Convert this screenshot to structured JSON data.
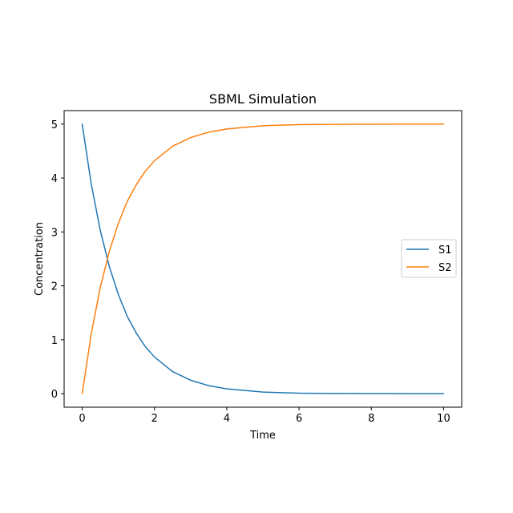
{
  "chart_data": {
    "type": "line",
    "title": "SBML Simulation",
    "xlabel": "Time",
    "ylabel": "Concentration",
    "xlim": [
      -0.5,
      10.5
    ],
    "ylim": [
      -0.25,
      5.25
    ],
    "xticks": [
      0,
      2,
      4,
      6,
      8,
      10
    ],
    "yticks": [
      0,
      1,
      2,
      3,
      4,
      5
    ],
    "grid": false,
    "legend_position": "center-right",
    "x": [
      0,
      0.25,
      0.5,
      0.75,
      1,
      1.25,
      1.5,
      1.75,
      2,
      2.5,
      3,
      3.5,
      4,
      4.5,
      5,
      5.5,
      6,
      7,
      8,
      9,
      10
    ],
    "series": [
      {
        "name": "S1",
        "color": "#1f77b4",
        "values": [
          5.0,
          3.89,
          3.03,
          2.36,
          1.84,
          1.43,
          1.12,
          0.87,
          0.68,
          0.41,
          0.25,
          0.15,
          0.09,
          0.06,
          0.03,
          0.02,
          0.01,
          0.005,
          0.002,
          0.001,
          0.0
        ]
      },
      {
        "name": "S2",
        "color": "#ff7f0e",
        "values": [
          0.0,
          1.11,
          1.97,
          2.64,
          3.16,
          3.57,
          3.88,
          4.13,
          4.32,
          4.59,
          4.75,
          4.85,
          4.91,
          4.94,
          4.97,
          4.98,
          4.99,
          4.995,
          4.998,
          4.999,
          5.0
        ]
      }
    ]
  }
}
